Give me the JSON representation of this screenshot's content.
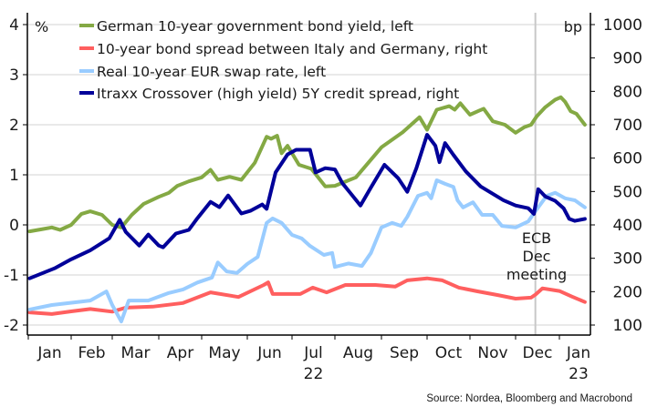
{
  "chart_data": {
    "type": "line",
    "title": "",
    "source": "Source: Nordea, Bloomberg and Macrobond",
    "left_axis": {
      "unit": "%",
      "ylim": [
        -2,
        4
      ],
      "ticks": [
        "4",
        "3",
        "2",
        "1",
        "0",
        "-1",
        "-2"
      ],
      "tick_values": [
        4,
        3,
        2,
        1,
        0,
        -1,
        -2
      ]
    },
    "right_axis": {
      "unit": "bp",
      "ylim": [
        100,
        1000
      ],
      "ticks": [
        "1000",
        "900",
        "800",
        "700",
        "600",
        "500",
        "400",
        "300",
        "200",
        "100"
      ],
      "tick_values": [
        1000,
        900,
        800,
        700,
        600,
        500,
        400,
        300,
        200,
        100
      ]
    },
    "x_axis": {
      "range": [
        "2022-01-01",
        "2023-01-20"
      ],
      "month_labels": [
        "Jan",
        "Feb",
        "Mar",
        "Apr",
        "May",
        "Jun",
        "Jul",
        "Aug",
        "Sep",
        "Oct",
        "Nov",
        "Dec",
        "Jan"
      ],
      "month_starts": [
        "2022-01-01",
        "2022-02-01",
        "2022-03-01",
        "2022-04-01",
        "2022-05-01",
        "2022-06-01",
        "2022-07-01",
        "2022-08-01",
        "2022-09-01",
        "2022-10-01",
        "2022-11-01",
        "2022-12-01",
        "2023-01-01"
      ],
      "year_labels": [
        {
          "label": "22",
          "under_month": "2022-07-01"
        },
        {
          "label": "23",
          "under_month": "2023-01-01"
        }
      ]
    },
    "grid": true,
    "legend_placement": "top-left",
    "annotation": {
      "lines": [
        "ECB",
        "Dec",
        "meeting"
      ],
      "date": "2022-12-15"
    },
    "series": [
      {
        "name": "German 10-year government bond yield, left",
        "axis": "left",
        "color": "#84a944",
        "points": [
          [
            "2022-01-02",
            -0.13
          ],
          [
            "2022-01-10",
            -0.09
          ],
          [
            "2022-01-18",
            -0.05
          ],
          [
            "2022-01-24",
            -0.1
          ],
          [
            "2022-02-01",
            0.0
          ],
          [
            "2022-02-08",
            0.22
          ],
          [
            "2022-02-14",
            0.27
          ],
          [
            "2022-02-22",
            0.2
          ],
          [
            "2022-03-01",
            0.0
          ],
          [
            "2022-03-07",
            -0.05
          ],
          [
            "2022-03-14",
            0.2
          ],
          [
            "2022-03-22",
            0.42
          ],
          [
            "2022-04-01",
            0.56
          ],
          [
            "2022-04-08",
            0.64
          ],
          [
            "2022-04-14",
            0.78
          ],
          [
            "2022-04-22",
            0.87
          ],
          [
            "2022-05-01",
            0.95
          ],
          [
            "2022-05-07",
            1.1
          ],
          [
            "2022-05-12",
            0.9
          ],
          [
            "2022-05-20",
            0.96
          ],
          [
            "2022-05-28",
            0.9
          ],
          [
            "2022-06-06",
            1.24
          ],
          [
            "2022-06-14",
            1.76
          ],
          [
            "2022-06-17",
            1.72
          ],
          [
            "2022-06-21",
            1.78
          ],
          [
            "2022-06-24",
            1.43
          ],
          [
            "2022-06-28",
            1.58
          ],
          [
            "2022-07-06",
            1.2
          ],
          [
            "2022-07-15",
            1.12
          ],
          [
            "2022-07-25",
            0.77
          ],
          [
            "2022-08-01",
            0.78
          ],
          [
            "2022-08-15",
            0.95
          ],
          [
            "2022-09-01",
            1.55
          ],
          [
            "2022-09-15",
            1.85
          ],
          [
            "2022-09-26",
            2.15
          ],
          [
            "2022-10-01",
            1.9
          ],
          [
            "2022-10-08",
            2.3
          ],
          [
            "2022-10-17",
            2.37
          ],
          [
            "2022-10-21",
            2.3
          ],
          [
            "2022-10-25",
            2.43
          ],
          [
            "2022-11-01",
            2.2
          ],
          [
            "2022-11-07",
            2.28
          ],
          [
            "2022-11-10",
            2.32
          ],
          [
            "2022-11-16",
            2.07
          ],
          [
            "2022-11-24",
            2.0
          ],
          [
            "2022-12-01",
            1.84
          ],
          [
            "2022-12-07",
            1.95
          ],
          [
            "2022-12-12",
            2.0
          ],
          [
            "2022-12-16",
            2.17
          ],
          [
            "2022-12-22",
            2.35
          ],
          [
            "2022-12-29",
            2.5
          ],
          [
            "2023-01-02",
            2.55
          ],
          [
            "2023-01-05",
            2.46
          ],
          [
            "2023-01-09",
            2.27
          ],
          [
            "2023-01-13",
            2.22
          ],
          [
            "2023-01-19",
            2.0
          ]
        ]
      },
      {
        "name": "10-year bond spread between Italy and Germany, right",
        "axis": "right",
        "color": "#ff5f5f",
        "points": [
          [
            "2022-01-02",
            138
          ],
          [
            "2022-01-18",
            133
          ],
          [
            "2022-02-01",
            141
          ],
          [
            "2022-02-14",
            148
          ],
          [
            "2022-03-01",
            140
          ],
          [
            "2022-03-10",
            152
          ],
          [
            "2022-03-28",
            155
          ],
          [
            "2022-04-18",
            166
          ],
          [
            "2022-05-07",
            198
          ],
          [
            "2022-05-26",
            184
          ],
          [
            "2022-06-12",
            220
          ],
          [
            "2022-06-15",
            228
          ],
          [
            "2022-06-18",
            193
          ],
          [
            "2022-07-07",
            193
          ],
          [
            "2022-07-16",
            212
          ],
          [
            "2022-07-26",
            198
          ],
          [
            "2022-08-08",
            220
          ],
          [
            "2022-08-28",
            220
          ],
          [
            "2022-09-10",
            215
          ],
          [
            "2022-09-18",
            234
          ],
          [
            "2022-10-01",
            240
          ],
          [
            "2022-10-12",
            234
          ],
          [
            "2022-10-24",
            212
          ],
          [
            "2022-11-06",
            201
          ],
          [
            "2022-11-19",
            190
          ],
          [
            "2022-12-01",
            179
          ],
          [
            "2022-12-12",
            182
          ],
          [
            "2022-12-15",
            191
          ],
          [
            "2022-12-20",
            210
          ],
          [
            "2023-01-01",
            202
          ],
          [
            "2023-01-10",
            185
          ],
          [
            "2023-01-19",
            169
          ]
        ]
      },
      {
        "name": "Real 10-year EUR swap rate, left",
        "axis": "left",
        "color": "#99ccff",
        "points": [
          [
            "2022-01-02",
            -1.69
          ],
          [
            "2022-01-18",
            -1.6
          ],
          [
            "2022-02-14",
            -1.51
          ],
          [
            "2022-02-25",
            -1.33
          ],
          [
            "2022-03-01",
            -1.6
          ],
          [
            "2022-03-07",
            -1.93
          ],
          [
            "2022-03-12",
            -1.51
          ],
          [
            "2022-03-25",
            -1.51
          ],
          [
            "2022-04-08",
            -1.36
          ],
          [
            "2022-04-18",
            -1.29
          ],
          [
            "2022-04-28",
            -1.15
          ],
          [
            "2022-05-08",
            -1.05
          ],
          [
            "2022-05-12",
            -0.75
          ],
          [
            "2022-05-18",
            -0.93
          ],
          [
            "2022-05-25",
            -0.96
          ],
          [
            "2022-06-01",
            -0.78
          ],
          [
            "2022-06-08",
            -0.64
          ],
          [
            "2022-06-14",
            0.04
          ],
          [
            "2022-06-18",
            0.13
          ],
          [
            "2022-06-24",
            0.04
          ],
          [
            "2022-07-01",
            -0.2
          ],
          [
            "2022-07-08",
            -0.27
          ],
          [
            "2022-07-14",
            -0.42
          ],
          [
            "2022-07-24",
            -0.6
          ],
          [
            "2022-07-30",
            -0.56
          ],
          [
            "2022-08-01",
            -0.84
          ],
          [
            "2022-08-10",
            -0.77
          ],
          [
            "2022-08-19",
            -0.82
          ],
          [
            "2022-08-25",
            -0.56
          ],
          [
            "2022-09-01",
            -0.05
          ],
          [
            "2022-09-08",
            0.04
          ],
          [
            "2022-09-14",
            -0.02
          ],
          [
            "2022-09-18",
            0.16
          ],
          [
            "2022-09-25",
            0.58
          ],
          [
            "2022-10-01",
            0.64
          ],
          [
            "2022-10-04",
            0.53
          ],
          [
            "2022-10-08",
            0.89
          ],
          [
            "2022-10-14",
            0.82
          ],
          [
            "2022-10-20",
            0.76
          ],
          [
            "2022-10-23",
            0.49
          ],
          [
            "2022-10-27",
            0.35
          ],
          [
            "2022-11-03",
            0.45
          ],
          [
            "2022-11-09",
            0.2
          ],
          [
            "2022-11-16",
            0.2
          ],
          [
            "2022-11-22",
            -0.02
          ],
          [
            "2022-12-01",
            -0.05
          ],
          [
            "2022-12-10",
            0.07
          ],
          [
            "2022-12-16",
            0.31
          ],
          [
            "2022-12-23",
            0.58
          ],
          [
            "2022-12-29",
            0.64
          ],
          [
            "2023-01-05",
            0.53
          ],
          [
            "2023-01-12",
            0.49
          ],
          [
            "2023-01-19",
            0.35
          ]
        ]
      },
      {
        "name": "Itraxx Crossover (high yield) 5Y credit spread, right",
        "axis": "right",
        "color": "#000099",
        "points": [
          [
            "2022-01-02",
            240
          ],
          [
            "2022-01-20",
            270
          ],
          [
            "2022-02-01",
            297
          ],
          [
            "2022-02-14",
            324
          ],
          [
            "2022-02-27",
            360
          ],
          [
            "2022-03-06",
            415
          ],
          [
            "2022-03-10",
            379
          ],
          [
            "2022-03-19",
            338
          ],
          [
            "2022-03-25",
            371
          ],
          [
            "2022-04-01",
            338
          ],
          [
            "2022-04-04",
            333
          ],
          [
            "2022-04-13",
            374
          ],
          [
            "2022-04-22",
            385
          ],
          [
            "2022-04-28",
            420
          ],
          [
            "2022-05-07",
            469
          ],
          [
            "2022-05-13",
            453
          ],
          [
            "2022-05-19",
            488
          ],
          [
            "2022-05-28",
            434
          ],
          [
            "2022-06-03",
            442
          ],
          [
            "2022-06-11",
            461
          ],
          [
            "2022-06-14",
            448
          ],
          [
            "2022-06-20",
            557
          ],
          [
            "2022-06-28",
            611
          ],
          [
            "2022-07-04",
            625
          ],
          [
            "2022-07-14",
            625
          ],
          [
            "2022-07-18",
            557
          ],
          [
            "2022-07-25",
            570
          ],
          [
            "2022-08-01",
            566
          ],
          [
            "2022-08-06",
            525
          ],
          [
            "2022-08-18",
            458
          ],
          [
            "2022-08-25",
            512
          ],
          [
            "2022-09-03",
            580
          ],
          [
            "2022-09-12",
            540
          ],
          [
            "2022-09-18",
            499
          ],
          [
            "2022-09-24",
            570
          ],
          [
            "2022-10-01",
            670
          ],
          [
            "2022-10-07",
            637
          ],
          [
            "2022-10-10",
            588
          ],
          [
            "2022-10-14",
            645
          ],
          [
            "2022-10-20",
            610
          ],
          [
            "2022-10-29",
            560
          ],
          [
            "2022-11-08",
            515
          ],
          [
            "2022-11-23",
            474
          ],
          [
            "2022-12-01",
            458
          ],
          [
            "2022-12-10",
            450
          ],
          [
            "2022-12-14",
            433
          ],
          [
            "2022-12-17",
            507
          ],
          [
            "2022-12-22",
            485
          ],
          [
            "2022-12-29",
            472
          ],
          [
            "2023-01-04",
            450
          ],
          [
            "2023-01-08",
            418
          ],
          [
            "2023-01-12",
            412
          ],
          [
            "2023-01-19",
            418
          ]
        ]
      }
    ]
  }
}
